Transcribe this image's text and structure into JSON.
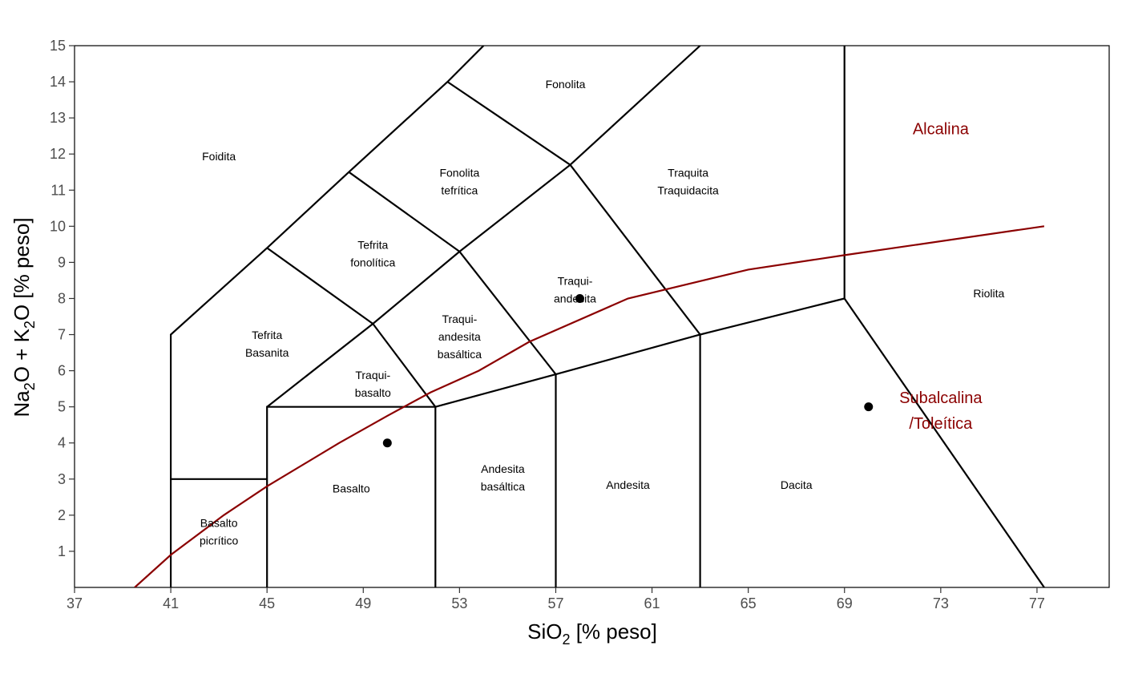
{
  "chart_data": {
    "type": "scatter",
    "title": "",
    "xlabel": {
      "main": "SiO",
      "sub": "2",
      "rest": " [% peso]"
    },
    "ylabel": {
      "p1": "Na",
      "s1": "2",
      "p2": "O + K",
      "s2": "2",
      "p3": "O [% peso]"
    },
    "xlim": [
      37,
      80
    ],
    "ylim": [
      0,
      15
    ],
    "x_ticks": [
      37,
      41,
      45,
      49,
      53,
      57,
      61,
      65,
      69,
      73,
      77
    ],
    "y_ticks": [
      1,
      2,
      3,
      4,
      5,
      6,
      7,
      8,
      9,
      10,
      11,
      12,
      13,
      14,
      15
    ],
    "grid": false,
    "boundary_color": "#000000",
    "divider_color": "#8b0000",
    "boundaries": [
      [
        [
          41,
          0
        ],
        [
          41,
          7
        ],
        [
          45,
          9.4
        ],
        [
          48.4,
          11.5
        ],
        [
          52.5,
          14
        ],
        [
          54,
          15
        ]
      ],
      [
        [
          41,
          3
        ],
        [
          45,
          3
        ]
      ],
      [
        [
          45,
          0
        ],
        [
          45,
          5
        ],
        [
          52,
          5
        ],
        [
          52,
          0
        ]
      ],
      [
        [
          45,
          5
        ],
        [
          49.4,
          7.3
        ],
        [
          53,
          9.3
        ],
        [
          57.6,
          11.7
        ],
        [
          63,
          15
        ]
      ],
      [
        [
          45,
          9.4
        ],
        [
          49.4,
          7.3
        ],
        [
          52,
          5
        ]
      ],
      [
        [
          48.4,
          11.5
        ],
        [
          53,
          9.3
        ],
        [
          57,
          5.9
        ],
        [
          57,
          0
        ]
      ],
      [
        [
          52.5,
          14
        ],
        [
          57.6,
          11.7
        ],
        [
          63,
          7
        ],
        [
          63,
          0
        ]
      ],
      [
        [
          52,
          5
        ],
        [
          57,
          5.9
        ],
        [
          63,
          7
        ],
        [
          69,
          8
        ],
        [
          69,
          15
        ]
      ],
      [
        [
          69,
          8
        ],
        [
          77.3,
          0
        ]
      ]
    ],
    "alkaline_divider": [
      [
        39.5,
        0
      ],
      [
        41,
        0.9
      ],
      [
        43.2,
        2
      ],
      [
        45,
        2.8
      ],
      [
        48,
        4
      ],
      [
        50,
        4.75
      ],
      [
        51.8,
        5.4
      ],
      [
        53.8,
        6
      ],
      [
        55.9,
        6.8
      ],
      [
        60,
        8
      ],
      [
        65,
        8.8
      ],
      [
        69,
        9.2
      ],
      [
        77.3,
        10
      ]
    ],
    "points": [
      [
        50,
        4
      ],
      [
        58,
        8
      ],
      [
        70,
        5
      ]
    ],
    "point_color": "#000000",
    "fields": [
      {
        "lines": [
          "Foidita"
        ],
        "x": 43,
        "y": 12
      },
      {
        "lines": [
          "Fonolita"
        ],
        "x": 57.4,
        "y": 14
      },
      {
        "lines": [
          "Fonolita",
          "tefrítica"
        ],
        "x": 53,
        "y": 11.3
      },
      {
        "lines": [
          "Tefrita",
          "fonolítica"
        ],
        "x": 49.4,
        "y": 9.3
      },
      {
        "lines": [
          "Tefrita",
          "Basanita"
        ],
        "x": 45,
        "y": 6.8
      },
      {
        "lines": [
          "Traqui-",
          "basalto"
        ],
        "x": 49.4,
        "y": 5.7
      },
      {
        "lines": [
          "Traqui-",
          "andesita",
          "basáltica"
        ],
        "x": 53,
        "y": 7
      },
      {
        "lines": [
          "Traqui-",
          "andesita"
        ],
        "x": 57.8,
        "y": 8.3
      },
      {
        "lines": [
          "Traquita",
          "Traquidacita"
        ],
        "x": 62.5,
        "y": 11.3
      },
      {
        "lines": [
          "Riolita"
        ],
        "x": 75,
        "y": 8.2
      },
      {
        "lines": [
          "Basalto"
        ],
        "x": 48.5,
        "y": 2.8
      },
      {
        "lines": [
          "Andesita",
          "basáltica"
        ],
        "x": 54.8,
        "y": 3.1
      },
      {
        "lines": [
          "Andesita"
        ],
        "x": 60,
        "y": 2.9
      },
      {
        "lines": [
          "Dacita"
        ],
        "x": 67,
        "y": 2.9
      },
      {
        "lines": [
          "Basalto",
          "picrítico"
        ],
        "x": 43,
        "y": 1.6
      }
    ],
    "series_labels": [
      {
        "lines": [
          "Alcalina"
        ],
        "x": 73,
        "y": 12.8
      },
      {
        "lines": [
          "Subalcalina",
          "/Toleítica"
        ],
        "x": 73,
        "y": 5
      }
    ]
  }
}
